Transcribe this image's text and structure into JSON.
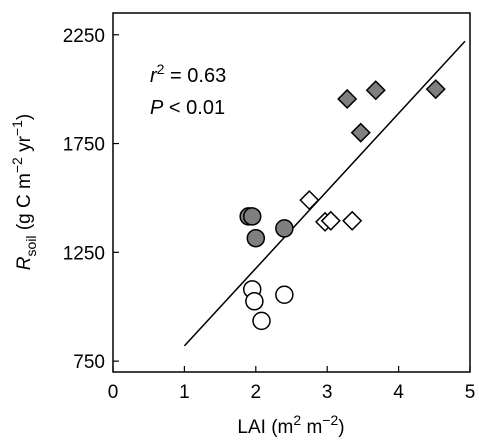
{
  "chart_data": {
    "type": "scatter",
    "xlabel": {
      "base": "LAI (m",
      "sup1": "2",
      "mid": " m",
      "sup2": "−2",
      "end": ")"
    },
    "ylabel": {
      "r": "R",
      "sub": "soil",
      "mid": " (g C m",
      "sup1": "−2",
      "mid2": " yr",
      "sup2": "−1",
      "end": ")"
    },
    "xlim": [
      0,
      5
    ],
    "ylim": [
      700,
      2350
    ],
    "xticks": [
      "0",
      "1",
      "2",
      "3",
      "4",
      "5"
    ],
    "yticks": [
      "750",
      "1250",
      "1750",
      "2250"
    ],
    "annotations": {
      "r2": {
        "r": "r",
        "sup": "2",
        "rest": " = 0.63"
      },
      "p": {
        "p": "P",
        "rest": " < 0.01"
      }
    },
    "series": [
      {
        "marker": "circle",
        "fill": "#7f7f7f",
        "points": [
          [
            1.9,
            1415
          ],
          [
            1.95,
            1415
          ],
          [
            2.0,
            1315
          ],
          [
            2.4,
            1360
          ]
        ]
      },
      {
        "marker": "circle",
        "fill": "#ffffff",
        "points": [
          [
            1.95,
            1080
          ],
          [
            1.98,
            1025
          ],
          [
            2.08,
            935
          ],
          [
            2.4,
            1055
          ]
        ]
      },
      {
        "marker": "diamond",
        "fill": "#7f7f7f",
        "points": [
          [
            3.28,
            1955
          ],
          [
            3.47,
            1800
          ],
          [
            3.68,
            1995
          ],
          [
            4.52,
            2000
          ]
        ]
      },
      {
        "marker": "diamond",
        "fill": "#ffffff",
        "points": [
          [
            2.75,
            1490
          ],
          [
            2.97,
            1390
          ],
          [
            3.05,
            1395
          ],
          [
            3.35,
            1395
          ]
        ]
      }
    ],
    "regression": {
      "x": [
        1.0,
        4.93
      ],
      "y": [
        820,
        2220
      ]
    }
  }
}
